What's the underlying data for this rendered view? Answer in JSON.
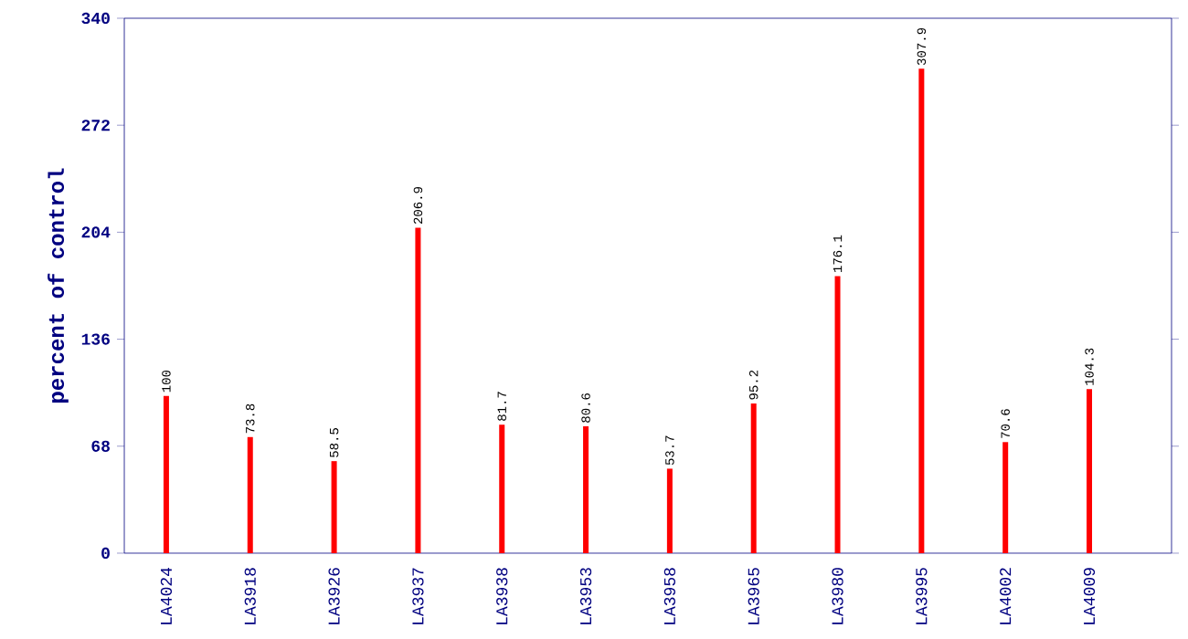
{
  "chart_data": {
    "type": "bar",
    "ylabel": "percent of control",
    "categories": [
      "LA4024",
      "LA3918",
      "LA3926",
      "LA3937",
      "LA3938",
      "LA3953",
      "LA3958",
      "LA3965",
      "LA3980",
      "LA3995",
      "LA4002",
      "LA4009"
    ],
    "values": [
      100,
      73.8,
      58.5,
      206.9,
      81.7,
      80.6,
      53.7,
      95.2,
      176.1,
      307.9,
      70.6,
      104.3
    ],
    "color": "#ff0000",
    "ylim": [
      0,
      340
    ],
    "yticks": [
      0,
      68,
      136,
      204,
      272,
      340
    ],
    "data_labels": true
  }
}
